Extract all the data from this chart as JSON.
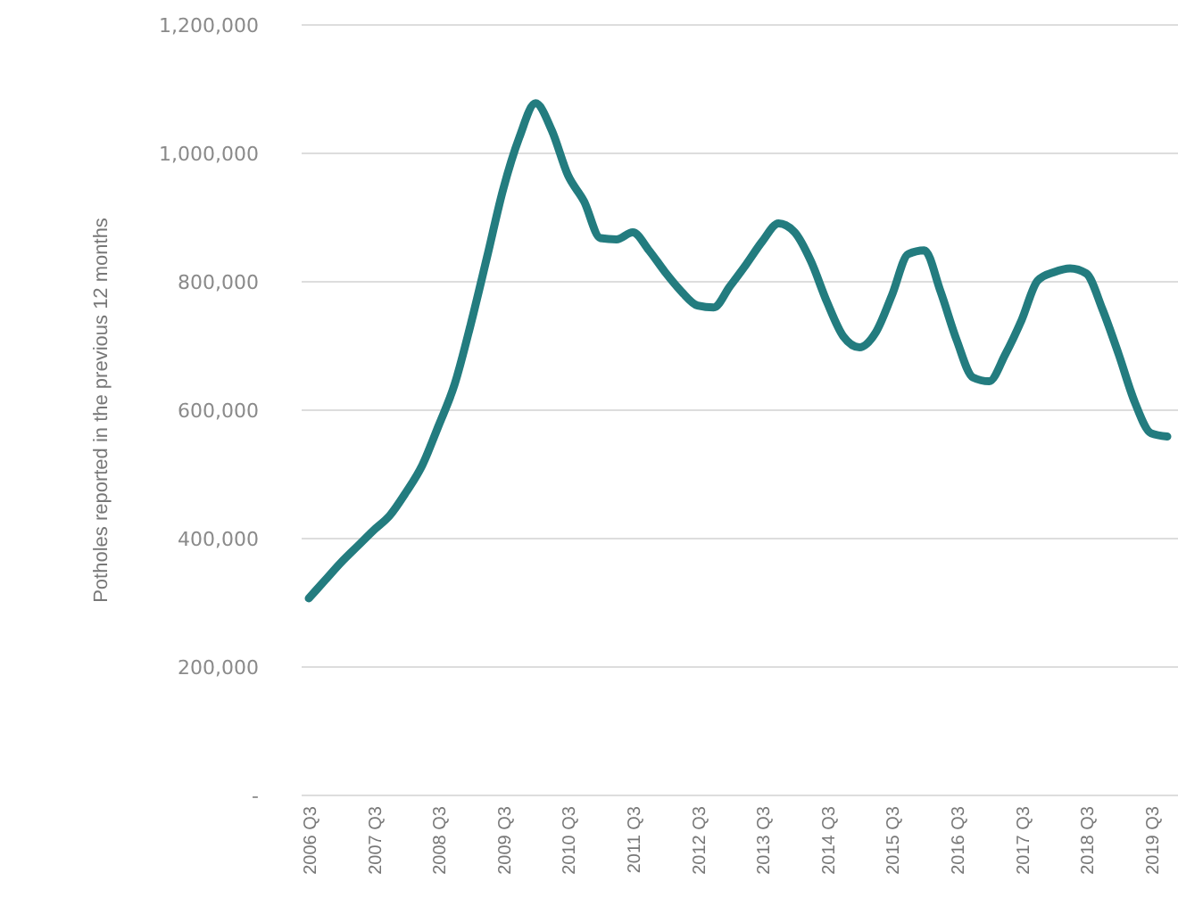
{
  "chart_data": {
    "type": "line",
    "ylabel": "Potholes reported in the previous 12 months",
    "categories": [
      "2006 Q3",
      null,
      null,
      null,
      "2007 Q3",
      null,
      null,
      null,
      "2008 Q3",
      null,
      null,
      null,
      "2009 Q3",
      null,
      null,
      null,
      "2010 Q3",
      null,
      null,
      null,
      "2011 Q3",
      null,
      null,
      null,
      "2012 Q3",
      null,
      null,
      null,
      "2013 Q3",
      null,
      null,
      null,
      "2014 Q3",
      null,
      null,
      null,
      "2015 Q3",
      null,
      null,
      null,
      "2016 Q3",
      null,
      null,
      null,
      "2017 Q3",
      null,
      null,
      null,
      "2018 Q3",
      null,
      null,
      null,
      "2019 Q3",
      null
    ],
    "series": [
      {
        "color": "#237c7f",
        "values": [
          307000,
          335000,
          363000,
          388000,
          413000,
          436000,
          472000,
          514000,
          575000,
          640000,
          734000,
          838000,
          944000,
          1025000,
          1078000,
          1036000,
          966000,
          925000,
          868000,
          866000,
          877000,
          849000,
          815000,
          785000,
          763000,
          760000,
          793000,
          827000,
          863000,
          891000,
          877000,
          832000,
          768000,
          715000,
          698000,
          721000,
          779000,
          843000,
          849000,
          785000,
          709000,
          651000,
          645000,
          687000,
          740000,
          802000,
          815000,
          821000,
          813000,
          757000,
          687000,
          612000,
          564000,
          559000
        ]
      }
    ],
    "ylim": [
      0,
      1200000
    ],
    "yticks": [
      {
        "value": 0,
        "label": "-"
      },
      {
        "value": 200000,
        "label": "200,000"
      },
      {
        "value": 400000,
        "label": "400,000"
      },
      {
        "value": 600000,
        "label": "600,000"
      },
      {
        "value": 800000,
        "label": "800,000"
      },
      {
        "value": 1000000,
        "label": "1,000,000"
      },
      {
        "value": 1200000,
        "label": "1,200,000"
      }
    ],
    "grid": "y",
    "marker": "none",
    "line_style": "solid"
  }
}
